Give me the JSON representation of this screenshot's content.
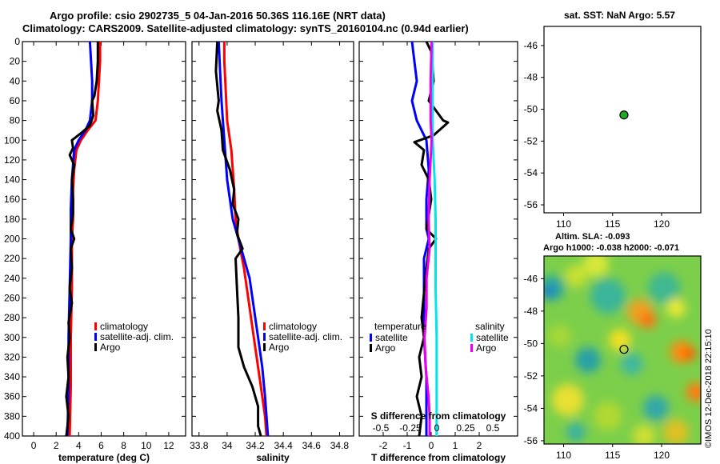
{
  "header": {
    "line1": "Argo profile: csio 2902735_5 04-Jan-2016 50.36S 116.16E (NRT data)",
    "line2": "Climatology: CARS2009. Satellite-adjusted climatology: synTS_20160104.nc (0.94d earlier)"
  },
  "colors": {
    "climatology": "#ff0000",
    "satellite": "#0000ff",
    "argo": "#000000",
    "salinity_sat": "#00e5ee",
    "salinity_argo": "#ee00ee"
  },
  "depth_ticks": [
    0,
    20,
    40,
    60,
    80,
    100,
    120,
    140,
    160,
    180,
    200,
    220,
    240,
    260,
    280,
    300,
    320,
    340,
    360,
    380,
    400
  ],
  "temperature_panel": {
    "xlabel": "temperature (deg C)",
    "xlim": [
      -1,
      13.5
    ],
    "xticks": [
      0,
      2,
      4,
      6,
      8,
      10,
      12
    ],
    "legend": [
      "climatology",
      "satellite-adj. clim.",
      "Argo"
    ],
    "series": [
      {
        "name": "climatology",
        "color": "#ff0000",
        "values": [
          [
            5.9,
            0
          ],
          [
            5.9,
            20
          ],
          [
            5.8,
            40
          ],
          [
            5.7,
            60
          ],
          [
            5.5,
            80
          ],
          [
            4.8,
            90
          ],
          [
            4.2,
            100
          ],
          [
            3.8,
            110
          ],
          [
            3.6,
            130
          ],
          [
            3.5,
            150
          ],
          [
            3.5,
            180
          ],
          [
            3.4,
            200
          ],
          [
            3.4,
            250
          ],
          [
            3.3,
            300
          ],
          [
            3.3,
            350
          ],
          [
            3.2,
            400
          ]
        ]
      },
      {
        "name": "satellite-adj. clim.",
        "color": "#0000ff",
        "values": [
          [
            5.0,
            0
          ],
          [
            5.1,
            20
          ],
          [
            5.2,
            40
          ],
          [
            5.2,
            60
          ],
          [
            5.0,
            80
          ],
          [
            4.6,
            90
          ],
          [
            4.0,
            100
          ],
          [
            3.6,
            110
          ],
          [
            3.4,
            140
          ],
          [
            3.3,
            170
          ],
          [
            3.3,
            200
          ],
          [
            3.2,
            250
          ],
          [
            3.1,
            300
          ],
          [
            3.1,
            350
          ],
          [
            3.0,
            400
          ]
        ]
      },
      {
        "name": "Argo",
        "color": "#000000",
        "values": [
          [
            5.7,
            0
          ],
          [
            5.7,
            20
          ],
          [
            5.6,
            40
          ],
          [
            5.4,
            55
          ],
          [
            5.2,
            60
          ],
          [
            5.3,
            75
          ],
          [
            5.0,
            85
          ],
          [
            4.3,
            92
          ],
          [
            3.4,
            100
          ],
          [
            3.5,
            108
          ],
          [
            3.2,
            115
          ],
          [
            3.6,
            125
          ],
          [
            3.4,
            140
          ],
          [
            3.5,
            160
          ],
          [
            3.5,
            175
          ],
          [
            3.3,
            190
          ],
          [
            3.6,
            200
          ],
          [
            3.3,
            210
          ],
          [
            3.4,
            230
          ],
          [
            3.2,
            250
          ],
          [
            3.4,
            265
          ],
          [
            3.1,
            285
          ],
          [
            3.2,
            300
          ],
          [
            3.0,
            320
          ],
          [
            3.1,
            340
          ],
          [
            2.9,
            360
          ],
          [
            3.1,
            380
          ],
          [
            2.9,
            400
          ]
        ]
      }
    ]
  },
  "salinity_panel": {
    "xlabel": "salinity",
    "xlim": [
      33.75,
      34.9
    ],
    "xticks": [
      "33.8",
      "34",
      "34.2",
      "34.4",
      "34.6",
      "34.8"
    ],
    "legend": [
      "climatology",
      "satellite-adj. clim.",
      "Argo"
    ],
    "series": [
      {
        "name": "climatology",
        "color": "#ff0000",
        "values": [
          [
            33.98,
            0
          ],
          [
            33.98,
            20
          ],
          [
            33.99,
            50
          ],
          [
            34.0,
            80
          ],
          [
            34.03,
            110
          ],
          [
            34.05,
            150
          ],
          [
            34.06,
            180
          ],
          [
            34.08,
            200
          ],
          [
            34.12,
            230
          ],
          [
            34.15,
            260
          ],
          [
            34.18,
            290
          ],
          [
            34.21,
            320
          ],
          [
            34.24,
            350
          ],
          [
            34.27,
            380
          ],
          [
            34.28,
            400
          ]
        ]
      },
      {
        "name": "satellite-adj. clim.",
        "color": "#0000ff",
        "values": [
          [
            33.94,
            0
          ],
          [
            33.95,
            30
          ],
          [
            33.96,
            60
          ],
          [
            33.97,
            80
          ],
          [
            33.98,
            100
          ],
          [
            34.0,
            140
          ],
          [
            34.04,
            180
          ],
          [
            34.1,
            210
          ],
          [
            34.16,
            240
          ],
          [
            34.19,
            270
          ],
          [
            34.22,
            300
          ],
          [
            34.25,
            330
          ],
          [
            34.27,
            360
          ],
          [
            34.28,
            380
          ],
          [
            34.29,
            400
          ]
        ]
      },
      {
        "name": "Argo",
        "color": "#000000",
        "values": [
          [
            33.93,
            0
          ],
          [
            33.92,
            30
          ],
          [
            33.94,
            60
          ],
          [
            33.93,
            70
          ],
          [
            33.96,
            90
          ],
          [
            33.97,
            110
          ],
          [
            34.02,
            130
          ],
          [
            34.05,
            150
          ],
          [
            34.04,
            165
          ],
          [
            34.08,
            180
          ],
          [
            34.07,
            195
          ],
          [
            34.11,
            210
          ],
          [
            34.06,
            220
          ],
          [
            34.07,
            250
          ],
          [
            34.08,
            280
          ],
          [
            34.08,
            310
          ],
          [
            34.12,
            330
          ],
          [
            34.18,
            350
          ],
          [
            34.22,
            370
          ],
          [
            34.22,
            390
          ],
          [
            34.24,
            400
          ]
        ]
      }
    ]
  },
  "difference_panel": {
    "xlabel": "T difference from climatology",
    "top_label": "S difference from climatology",
    "xlim": [
      -3,
      3.6
    ],
    "xticks": [
      "-2",
      "-1",
      "0",
      "1",
      "2"
    ],
    "sticks": [
      "-0.5",
      "-0.25",
      "0",
      "0.25",
      "0.5"
    ],
    "legend_left_title": "temperature",
    "legend_right_title": "salinity",
    "legend_left": [
      "satellite",
      "Argo"
    ],
    "legend_right": [
      "satellite",
      "Argo"
    ],
    "series": [
      {
        "name": "temperature satellite",
        "color": "#0000ff",
        "values": [
          [
            -0.8,
            0
          ],
          [
            -0.7,
            20
          ],
          [
            -0.6,
            40
          ],
          [
            -0.8,
            60
          ],
          [
            -0.6,
            80
          ],
          [
            -0.2,
            100
          ],
          [
            -0.1,
            130
          ],
          [
            -0.2,
            160
          ],
          [
            -0.2,
            190
          ],
          [
            -0.1,
            200
          ],
          [
            -0.3,
            220
          ],
          [
            -0.3,
            260
          ],
          [
            -0.3,
            300
          ],
          [
            -0.2,
            340
          ],
          [
            -0.2,
            400
          ]
        ]
      },
      {
        "name": "temperature Argo",
        "color": "#000000",
        "values": [
          [
            -0.2,
            0
          ],
          [
            0.0,
            10
          ],
          [
            0.1,
            40
          ],
          [
            -0.1,
            60
          ],
          [
            0.5,
            80
          ],
          [
            0.7,
            82
          ],
          [
            0.1,
            95
          ],
          [
            -0.7,
            102
          ],
          [
            -0.3,
            110
          ],
          [
            -0.4,
            125
          ],
          [
            -0.1,
            140
          ],
          [
            0.0,
            160
          ],
          [
            -0.2,
            190
          ],
          [
            0.2,
            200
          ],
          [
            -0.1,
            210
          ],
          [
            -0.2,
            230
          ],
          [
            -0.3,
            255
          ],
          [
            -0.4,
            280
          ],
          [
            -0.3,
            300
          ],
          [
            -0.5,
            320
          ],
          [
            -0.4,
            340
          ],
          [
            -0.6,
            360
          ],
          [
            -0.4,
            380
          ],
          [
            -0.5,
            400
          ]
        ]
      },
      {
        "name": "salinity satellite",
        "color": "#00e5ee",
        "values": [
          [
            -0.02,
            0
          ],
          [
            -0.02,
            40
          ],
          [
            -0.02,
            80
          ],
          [
            -0.02,
            100
          ],
          [
            0.0,
            140
          ],
          [
            0.01,
            180
          ],
          [
            0.01,
            210
          ],
          [
            0.01,
            250
          ],
          [
            0.02,
            300
          ],
          [
            0.02,
            350
          ],
          [
            0.02,
            400
          ]
        ]
      },
      {
        "name": "salinity Argo",
        "color": "#ee00ee",
        "values": [
          [
            -0.03,
            0
          ],
          [
            -0.04,
            40
          ],
          [
            -0.04,
            80
          ],
          [
            -0.03,
            100
          ],
          [
            -0.05,
            140
          ],
          [
            -0.06,
            180
          ],
          [
            -0.05,
            210
          ],
          [
            -0.08,
            240
          ],
          [
            -0.08,
            270
          ],
          [
            -0.1,
            300
          ],
          [
            -0.09,
            330
          ],
          [
            -0.06,
            360
          ],
          [
            -0.05,
            380
          ],
          [
            -0.05,
            400
          ]
        ]
      }
    ]
  },
  "sst_map": {
    "title": "sat. SST: NaN Argo: 5.57",
    "xticks": [
      "110",
      "115",
      "120"
    ],
    "yticks": [
      "-46",
      "-48",
      "-50",
      "-52",
      "-54",
      "-56"
    ],
    "xlim": [
      108,
      124
    ],
    "ylim": [
      -56.5,
      -44.8
    ],
    "point": {
      "lon": 116.16,
      "lat": -50.36
    }
  },
  "sla_map": {
    "title1": "Altim. SLA: -0.093",
    "title2": "Argo h1000: -0.038 h2000: -0.071",
    "xticks": [
      "110",
      "115",
      "120"
    ],
    "yticks": [
      "-46",
      "-48",
      "-50",
      "-52",
      "-54",
      "-56"
    ],
    "xlim": [
      108,
      124
    ],
    "ylim": [
      -56.2,
      -44.6
    ],
    "point": {
      "lon": 116.16,
      "lat": -50.36
    }
  },
  "credit": "©IMOS 12-Dec-2018 22:15:10"
}
